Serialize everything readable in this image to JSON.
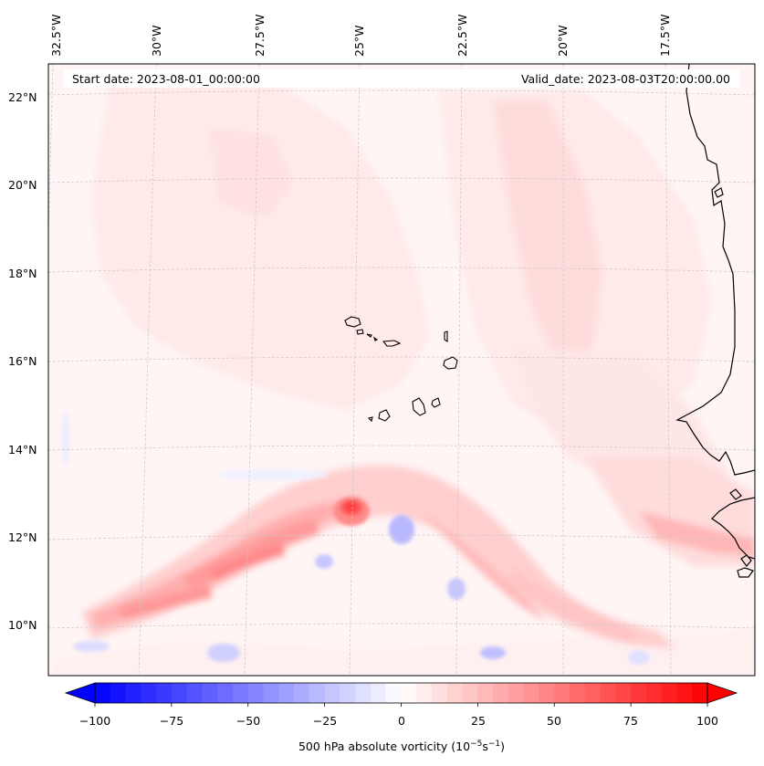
{
  "map": {
    "start_date_text": "Start date: 2023-08-01_00:00:00",
    "valid_date_text": "Valid_date: 2023-08-03T20:00:00.00",
    "lon_labels": [
      "32.5°W",
      "30°W",
      "27.5°W",
      "25°W",
      "22.5°W",
      "20°W",
      "17.5°W"
    ],
    "lat_labels": [
      "22°N",
      "20°N",
      "18°N",
      "16°N",
      "14°N",
      "12°N",
      "10°N"
    ],
    "islands_name": "Cape Verde Islands",
    "coast_name": "West African coastline"
  },
  "colorbar": {
    "ticks": [
      "−100",
      "−75",
      "−50",
      "−25",
      "0",
      "25",
      "50",
      "75",
      "100"
    ],
    "label_text": "500 hPa absolute vorticity (10",
    "label_exp1": "−5",
    "label_mid": "s",
    "label_exp2": "−1",
    "label_end": ")",
    "vmin": -100,
    "vmax": 100,
    "levels": 41,
    "cmap": "bwr"
  },
  "colors": {
    "faint_red": "#fff1f1",
    "light_red": "#ffdede",
    "mid_red": "#ffb0b0",
    "strong_red": "#ff5a5a",
    "light_blue": "#e6e6ff",
    "mid_blue": "#b4b4ff"
  }
}
